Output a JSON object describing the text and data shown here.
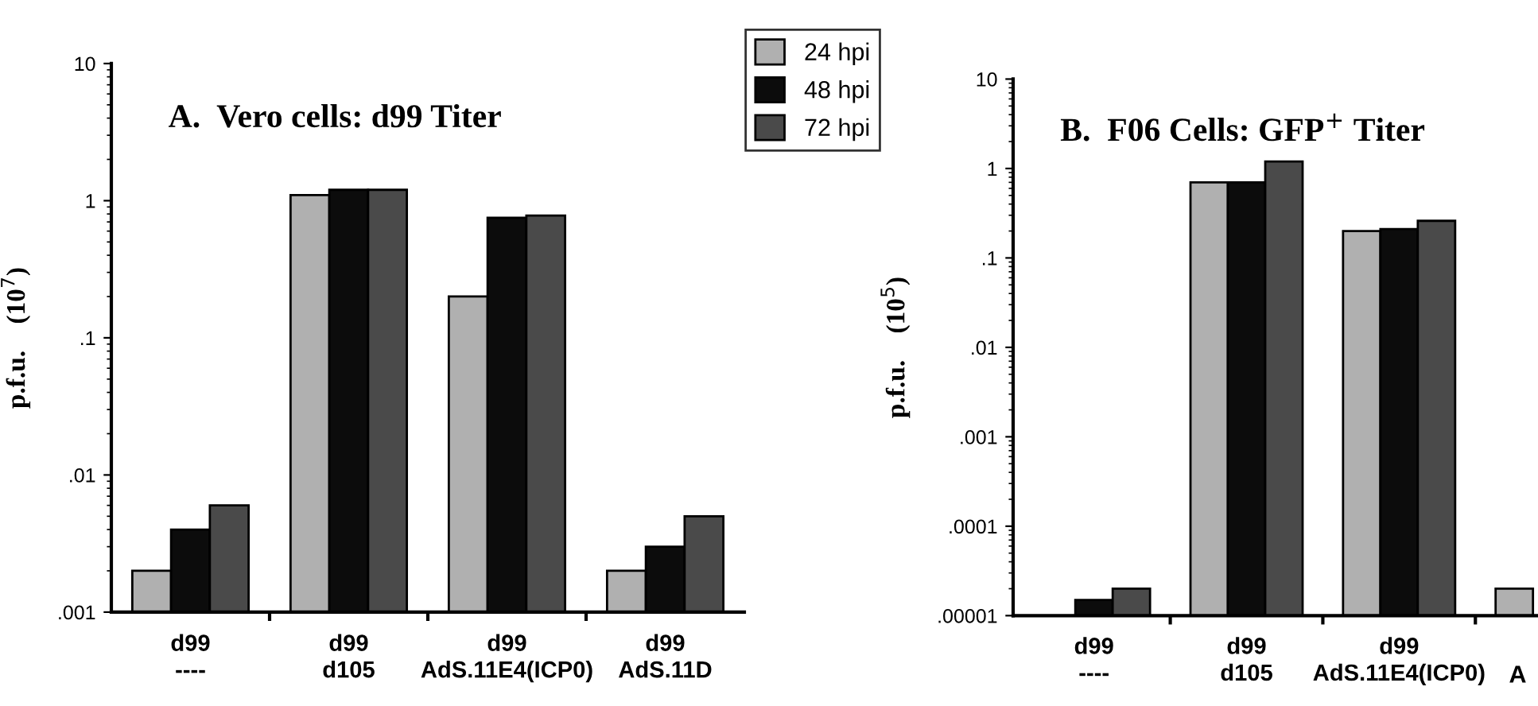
{
  "chart_data": [
    {
      "type": "bar",
      "title": "A.  Vero cells: d99 Titer",
      "ylabel": "p.f.u.    (10$^{7}$)",
      "log": true,
      "legend": "top right",
      "categories": [
        "d99\n----",
        "d99\nd105",
        "d99\nAdS.11E4(ICP0)",
        "d99\nAdS.11D"
      ],
      "ylim": [
        0.001,
        10
      ],
      "yticks": [
        {
          "value": 0.001,
          "label": ".001"
        },
        {
          "value": 0.01,
          "label": ".01"
        },
        {
          "value": 0.1,
          "label": ".1"
        },
        1,
        10
      ],
      "series": [
        {
          "name": "24 hpi",
          "color": "#b0b0b0",
          "values": [
            0.002,
            1.1,
            0.2,
            0.002
          ]
        },
        {
          "name": "48 hpi",
          "color": "#0c0c0c",
          "values": [
            0.004,
            1.2,
            0.75,
            0.003
          ]
        },
        {
          "name": "72 hpi",
          "color": "#4a4a4a",
          "values": [
            0.006,
            1.2,
            0.78,
            0.005
          ]
        }
      ]
    },
    {
      "type": "bar",
      "title": "B.  F06 Cells: GFP$^{+}$ Titer",
      "ylabel": "p.f.u.    (10$^{5}$)",
      "log": true,
      "categories": [
        "d99\n----",
        "d99\nd105",
        "d99\nAdS.11E4(ICP0)",
        "A"
      ],
      "ylim": [
        1e-05,
        10
      ],
      "yticks": [
        {
          "value": 1e-05,
          "label": ".00001"
        },
        {
          "value": 0.0001,
          "label": ".0001"
        },
        {
          "value": 0.001,
          "label": ".001"
        },
        {
          "value": 0.01,
          "label": ".01"
        },
        {
          "value": 0.1,
          "label": ".1"
        },
        1,
        10
      ],
      "series": [
        {
          "color": "#b0b0b0",
          "values": [
            null,
            0.7,
            0.2,
            2e-05
          ]
        },
        {
          "color": "#0c0c0c",
          "values": [
            1.5e-05,
            0.7,
            0.21,
            null
          ]
        },
        {
          "color": "#4a4a4a",
          "values": [
            2e-05,
            1.2,
            0.26,
            null
          ]
        }
      ]
    }
  ]
}
